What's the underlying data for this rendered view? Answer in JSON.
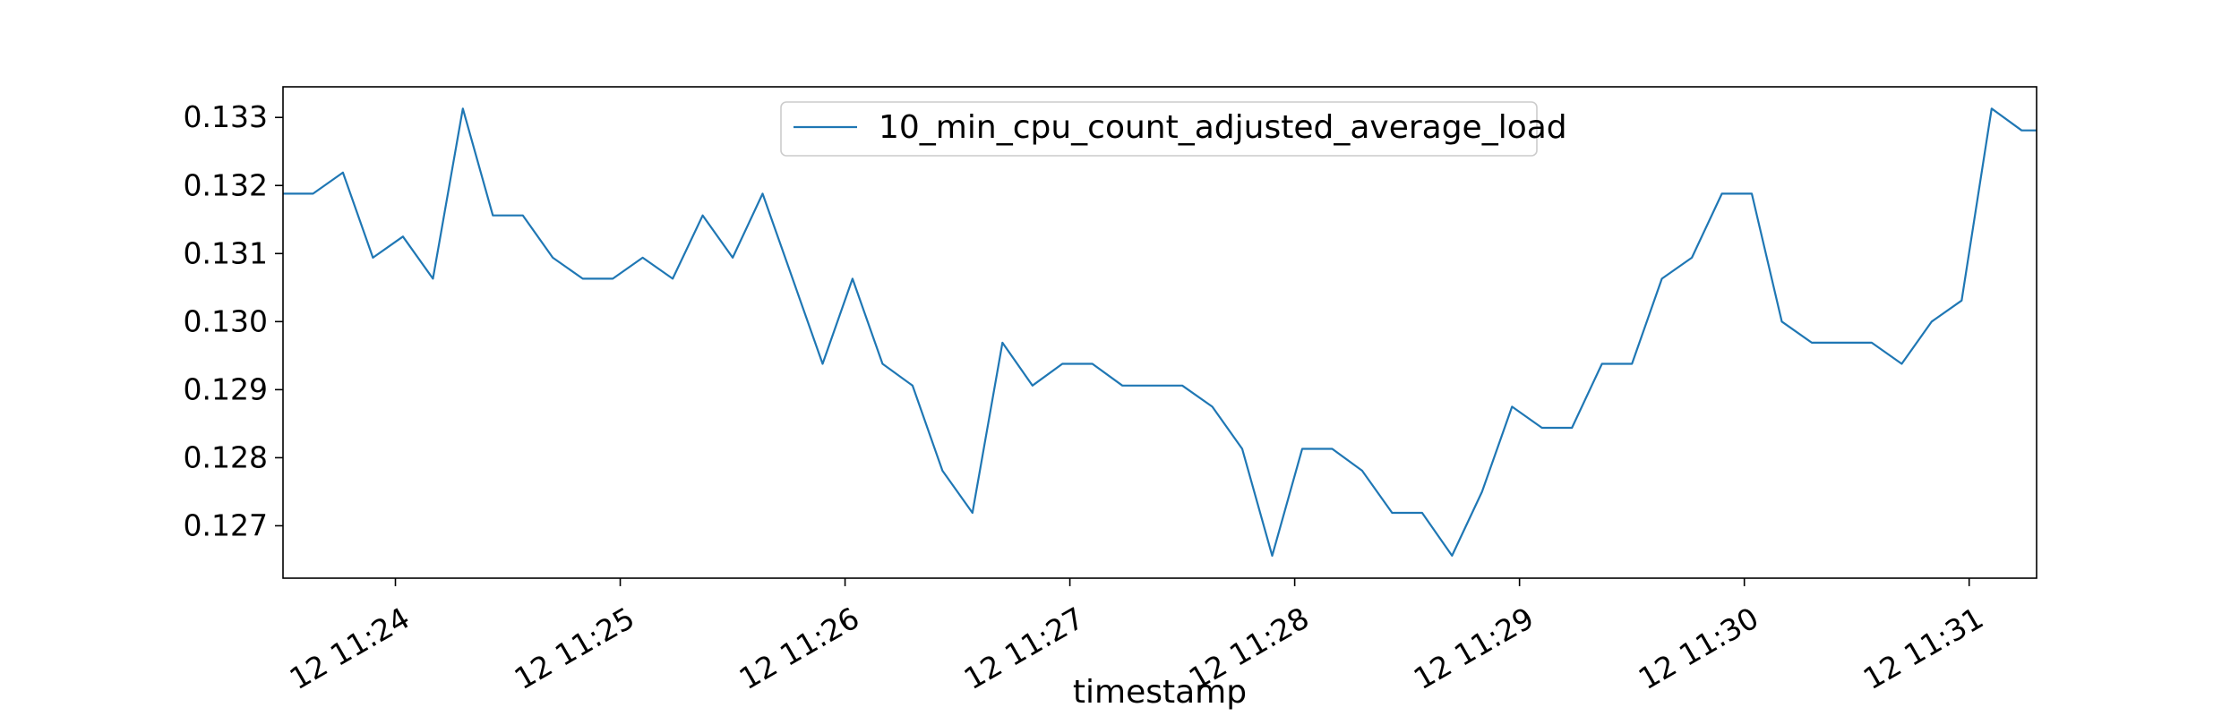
{
  "chart_data": {
    "type": "line",
    "xlabel": "timestamp",
    "ylabel": "",
    "ylim": [
      0.12623,
      0.13345
    ],
    "xlim": [
      "12 11:23:30",
      "12 11:31:18"
    ],
    "x_tick_labels": [
      "12 11:24",
      "12 11:25",
      "12 11:26",
      "12 11:27",
      "12 11:28",
      "12 11:29",
      "12 11:30",
      "12 11:31"
    ],
    "y_tick_labels": [
      "0.127",
      "0.128",
      "0.129",
      "0.130",
      "0.131",
      "0.132",
      "0.133"
    ],
    "y_ticks": [
      0.127,
      0.128,
      0.129,
      0.13,
      0.131,
      0.132,
      0.133
    ],
    "legend": "top-center",
    "grid": false,
    "series": [
      {
        "name": "10_min_cpu_count_adjusted_average_load",
        "color": "#1f77b4",
        "x": [
          "12 11:23:30",
          "12 11:23:38",
          "12 11:23:46",
          "12 11:23:54",
          "12 11:24:02",
          "12 11:24:10",
          "12 11:24:18",
          "12 11:24:26",
          "12 11:24:34",
          "12 11:24:42",
          "12 11:24:50",
          "12 11:24:58",
          "12 11:25:06",
          "12 11:25:14",
          "12 11:25:22",
          "12 11:25:30",
          "12 11:25:38",
          "12 11:25:46",
          "12 11:25:54",
          "12 11:26:02",
          "12 11:26:10",
          "12 11:26:18",
          "12 11:26:26",
          "12 11:26:34",
          "12 11:26:42",
          "12 11:26:50",
          "12 11:26:58",
          "12 11:27:06",
          "12 11:27:14",
          "12 11:27:22",
          "12 11:27:30",
          "12 11:27:38",
          "12 11:27:46",
          "12 11:27:54",
          "12 11:28:02",
          "12 11:28:10",
          "12 11:28:18",
          "12 11:28:26",
          "12 11:28:34",
          "12 11:28:42",
          "12 11:28:50",
          "12 11:28:58",
          "12 11:29:06",
          "12 11:29:14",
          "12 11:29:22",
          "12 11:29:30",
          "12 11:29:38",
          "12 11:29:46",
          "12 11:29:54",
          "12 11:30:02",
          "12 11:30:10",
          "12 11:30:18",
          "12 11:30:26",
          "12 11:30:34",
          "12 11:30:42",
          "12 11:30:50",
          "12 11:30:58",
          "12 11:31:06",
          "12 11:31:14",
          "12 11:31:18"
        ],
        "values": [
          0.13188,
          0.13188,
          0.13219,
          0.13094,
          0.13125,
          0.13063,
          0.13313,
          0.13156,
          0.13156,
          0.13094,
          0.13063,
          0.13063,
          0.13094,
          0.13063,
          0.13156,
          0.13094,
          0.13188,
          0.13063,
          0.12938,
          0.13063,
          0.12938,
          0.12906,
          0.12781,
          0.12719,
          0.12969,
          0.12906,
          0.12938,
          0.12938,
          0.12906,
          0.12906,
          0.12906,
          0.12875,
          0.12813,
          0.12656,
          0.12813,
          0.12813,
          0.12781,
          0.12719,
          0.12719,
          0.12656,
          0.1275,
          0.12875,
          0.12844,
          0.12844,
          0.12938,
          0.12938,
          0.13063,
          0.13094,
          0.13188,
          0.13188,
          0.13,
          0.12969,
          0.12969,
          0.12969,
          0.12938,
          0.13,
          0.13031,
          0.13313,
          0.13281,
          0.13281
        ]
      }
    ]
  }
}
